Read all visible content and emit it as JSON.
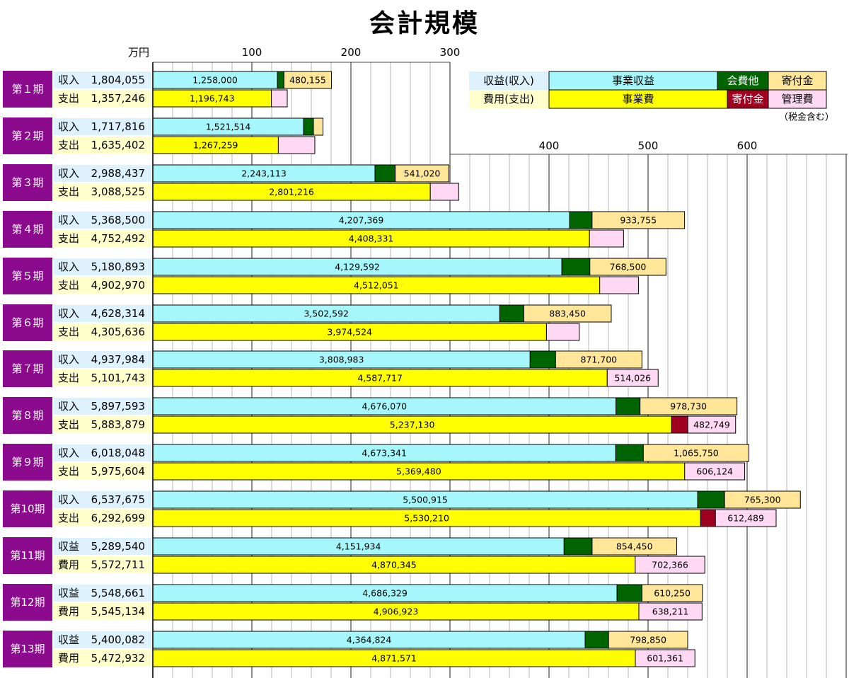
{
  "title": "会計規模",
  "unit_label": "万円",
  "tax_note": "（税金含む）",
  "legend": {
    "income_label": "収益(収入)",
    "expense_label": "費用(支出)",
    "income_items": [
      {
        "name": "事業収益",
        "color": "#A6F7FB"
      },
      {
        "name": "会費他",
        "color": "#006400"
      },
      {
        "name": "寄付金",
        "color": "#FFE699"
      }
    ],
    "expense_items": [
      {
        "name": "事業費",
        "color": "#FFFF00"
      },
      {
        "name": "寄付金",
        "color": "#A00020"
      },
      {
        "name": "管理費",
        "color": "#FFD9F3"
      }
    ]
  },
  "colors": {
    "period_label_bg": "#8B0A8E",
    "income_label_bg": "#DDF2FC",
    "expense_label_bg": "#FFFFCC",
    "bar_outline": "#000000",
    "grid": "#999999"
  },
  "chart_data": {
    "type": "bar",
    "orientation": "horizontal",
    "stacked": true,
    "unit": "万円",
    "x_ticks_first": [
      100,
      200,
      300
    ],
    "x_ticks_second": [
      400,
      500,
      600
    ],
    "periods": [
      {
        "label": "第１期",
        "income_label": "収入",
        "income_total": "1,804,055",
        "expense_label": "支出",
        "expense_total": "1,357,246",
        "income": [
          {
            "name": "事業収益",
            "value": 1258000,
            "text": "1,258,000"
          },
          {
            "name": "会費他",
            "value": 65900
          },
          {
            "name": "寄付金",
            "value": 480155,
            "text": "480,155"
          }
        ],
        "expense": [
          {
            "name": "事業費",
            "value": 1196743,
            "text": "1,196,743"
          },
          {
            "name": "管理費",
            "value": 160503
          }
        ]
      },
      {
        "label": "第２期",
        "income_label": "収入",
        "income_total": "1,717,816",
        "expense_label": "支出",
        "expense_total": "1,635,402",
        "income": [
          {
            "name": "事業収益",
            "value": 1521514,
            "text": "1,521,514"
          },
          {
            "name": "会費他",
            "value": 100000
          },
          {
            "name": "寄付金",
            "value": 96302
          }
        ],
        "expense": [
          {
            "name": "事業費",
            "value": 1267259,
            "text": "1,267,259"
          },
          {
            "name": "管理費",
            "value": 368143
          }
        ]
      },
      {
        "label": "第３期",
        "income_label": "収入",
        "income_total": "2,988,437",
        "expense_label": "支出",
        "expense_total": "3,088,525",
        "income": [
          {
            "name": "事業収益",
            "value": 2243113,
            "text": "2,243,113"
          },
          {
            "name": "会費他",
            "value": 204304
          },
          {
            "name": "寄付金",
            "value": 541020,
            "text": "541,020"
          }
        ],
        "expense": [
          {
            "name": "事業費",
            "value": 2801216,
            "text": "2,801,216"
          },
          {
            "name": "管理費",
            "value": 287309
          }
        ]
      },
      {
        "label": "第４期",
        "income_label": "収入",
        "income_total": "5,368,500",
        "expense_label": "支出",
        "expense_total": "4,752,492",
        "income": [
          {
            "name": "事業収益",
            "value": 4207369,
            "text": "4,207,369"
          },
          {
            "name": "会費他",
            "value": 227376
          },
          {
            "name": "寄付金",
            "value": 933755,
            "text": "933,755"
          }
        ],
        "expense": [
          {
            "name": "事業費",
            "value": 4408331,
            "text": "4,408,331"
          },
          {
            "name": "管理費",
            "value": 344161
          }
        ]
      },
      {
        "label": "第５期",
        "income_label": "収入",
        "income_total": "5,180,893",
        "expense_label": "支出",
        "expense_total": "4,902,970",
        "income": [
          {
            "name": "事業収益",
            "value": 4129592,
            "text": "4,129,592"
          },
          {
            "name": "会費他",
            "value": 282801
          },
          {
            "name": "寄付金",
            "value": 768500,
            "text": "768,500"
          }
        ],
        "expense": [
          {
            "name": "事業費",
            "value": 4512051,
            "text": "4,512,051"
          },
          {
            "name": "管理費",
            "value": 390919
          }
        ]
      },
      {
        "label": "第６期",
        "income_label": "収入",
        "income_total": "4,628,314",
        "expense_label": "支出",
        "expense_total": "4,305,636",
        "income": [
          {
            "name": "事業収益",
            "value": 3502592,
            "text": "3,502,592"
          },
          {
            "name": "会費他",
            "value": 242272
          },
          {
            "name": "寄付金",
            "value": 883450,
            "text": "883,450"
          }
        ],
        "expense": [
          {
            "name": "事業費",
            "value": 3974524,
            "text": "3,974,524"
          },
          {
            "name": "管理費",
            "value": 331112
          }
        ]
      },
      {
        "label": "第７期",
        "income_label": "収入",
        "income_total": "4,937,984",
        "expense_label": "支出",
        "expense_total": "5,101,743",
        "income": [
          {
            "name": "事業収益",
            "value": 3808983,
            "text": "3,808,983"
          },
          {
            "name": "会費他",
            "value": 257301
          },
          {
            "name": "寄付金",
            "value": 871700,
            "text": "871,700"
          }
        ],
        "expense": [
          {
            "name": "事業費",
            "value": 4587717,
            "text": "4,587,717"
          },
          {
            "name": "管理費",
            "value": 514026,
            "text": "514,026"
          }
        ]
      },
      {
        "label": "第８期",
        "income_label": "収入",
        "income_total": "5,897,593",
        "expense_label": "支出",
        "expense_total": "5,883,879",
        "income": [
          {
            "name": "事業収益",
            "value": 4676070,
            "text": "4,676,070"
          },
          {
            "name": "会費他",
            "value": 242793
          },
          {
            "name": "寄付金",
            "value": 978730,
            "text": "978,730"
          }
        ],
        "expense": [
          {
            "name": "事業費",
            "value": 5237130,
            "text": "5,237,130"
          },
          {
            "name": "寄付金",
            "value": 164000
          },
          {
            "name": "管理費",
            "value": 482749,
            "text": "482,749"
          }
        ]
      },
      {
        "label": "第９期",
        "income_label": "収入",
        "income_total": "6,018,048",
        "expense_label": "支出",
        "expense_total": "5,975,604",
        "income": [
          {
            "name": "事業収益",
            "value": 4673341,
            "text": "4,673,341"
          },
          {
            "name": "会費他",
            "value": 278957
          },
          {
            "name": "寄付金",
            "value": 1065750,
            "text": "1,065,750"
          }
        ],
        "expense": [
          {
            "name": "事業費",
            "value": 5369480,
            "text": "5,369,480"
          },
          {
            "name": "管理費",
            "value": 606124,
            "text": "606,124"
          }
        ]
      },
      {
        "label": "第10期",
        "income_label": "収入",
        "income_total": "6,537,675",
        "expense_label": "支出",
        "expense_total": "6,292,699",
        "income": [
          {
            "name": "事業収益",
            "value": 5500915,
            "text": "5,500,915"
          },
          {
            "name": "会費他",
            "value": 271460
          },
          {
            "name": "寄付金",
            "value": 765300,
            "text": "765,300"
          }
        ],
        "expense": [
          {
            "name": "事業費",
            "value": 5530210,
            "text": "5,530,210"
          },
          {
            "name": "寄付金",
            "value": 150000
          },
          {
            "name": "管理費",
            "value": 612489,
            "text": "612,489"
          }
        ]
      },
      {
        "label": "第11期",
        "income_label": "収益",
        "income_total": "5,289,540",
        "expense_label": "費用",
        "expense_total": "5,572,711",
        "income": [
          {
            "name": "事業収益",
            "value": 4151934,
            "text": "4,151,934"
          },
          {
            "name": "会費他",
            "value": 283156
          },
          {
            "name": "寄付金",
            "value": 854450,
            "text": "854,450"
          }
        ],
        "expense": [
          {
            "name": "事業費",
            "value": 4870345,
            "text": "4,870,345"
          },
          {
            "name": "管理費",
            "value": 702366,
            "text": "702,366"
          }
        ]
      },
      {
        "label": "第12期",
        "income_label": "収益",
        "income_total": "5,548,661",
        "expense_label": "費用",
        "expense_total": "5,545,134",
        "income": [
          {
            "name": "事業収益",
            "value": 4686329,
            "text": "4,686,329"
          },
          {
            "name": "会費他",
            "value": 252082
          },
          {
            "name": "寄付金",
            "value": 610250,
            "text": "610,250"
          }
        ],
        "expense": [
          {
            "name": "事業費",
            "value": 4906923,
            "text": "4,906,923"
          },
          {
            "name": "管理費",
            "value": 638211,
            "text": "638,211"
          }
        ]
      },
      {
        "label": "第13期",
        "income_label": "収益",
        "income_total": "5,400,082",
        "expense_label": "費用",
        "expense_total": "5,472,932",
        "income": [
          {
            "name": "事業収益",
            "value": 4364824,
            "text": "4,364,824"
          },
          {
            "name": "会費他",
            "value": 236408
          },
          {
            "name": "寄付金",
            "value": 798850,
            "text": "798,850"
          }
        ],
        "expense": [
          {
            "name": "事業費",
            "value": 4871571,
            "text": "4,871,571"
          },
          {
            "name": "管理費",
            "value": 601361,
            "text": "601,361"
          }
        ]
      }
    ]
  }
}
